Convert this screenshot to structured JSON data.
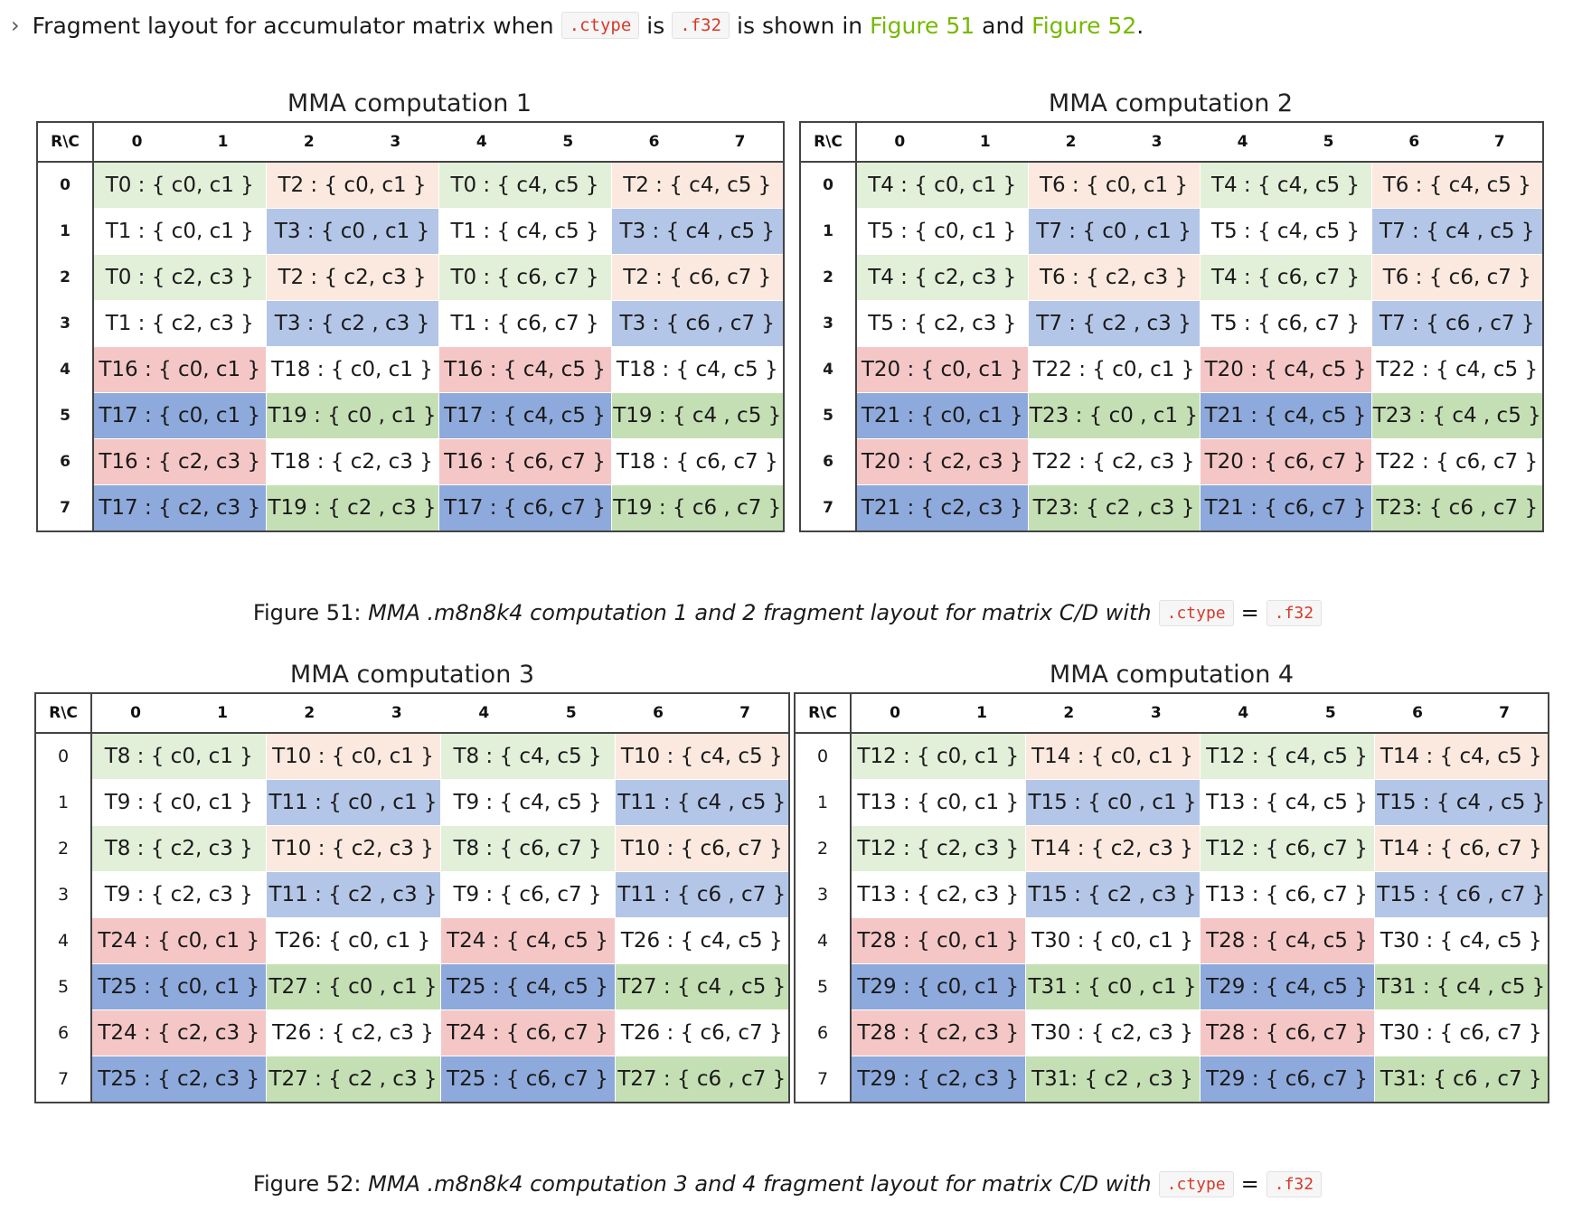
{
  "intro": {
    "text1": "Fragment layout for accumulator matrix when",
    "code1": ".ctype",
    "text2": "is",
    "code2": ".f32",
    "text3": "is shown in",
    "link1": "Figure 51",
    "text4": "and",
    "link2": "Figure 52",
    "text5": "."
  },
  "colors": {
    "G": "#e2efd9",
    "P": "#fbe9df",
    "B": "#b4c6e7",
    "R": "#f4c7c6",
    "D": "#8ea9db",
    "V": "#c5dfb4",
    "W": "#ffffff"
  },
  "color_pattern": [
    [
      "G",
      "P",
      "G",
      "P"
    ],
    [
      "W",
      "B",
      "W",
      "B"
    ],
    [
      "G",
      "P",
      "G",
      "P"
    ],
    [
      "W",
      "B",
      "W",
      "B"
    ],
    [
      "R",
      "W",
      "R",
      "W"
    ],
    [
      "D",
      "V",
      "D",
      "V"
    ],
    [
      "R",
      "W",
      "R",
      "W"
    ],
    [
      "D",
      "V",
      "D",
      "V"
    ]
  ],
  "column_headers": [
    "0",
    "1",
    "2",
    "3",
    "4",
    "5",
    "6",
    "7"
  ],
  "row_headers": [
    "0",
    "1",
    "2",
    "3",
    "4",
    "5",
    "6",
    "7"
  ],
  "corner_label": "R\\C",
  "figures": [
    {
      "panels": [
        {
          "title": "MMA computation 1",
          "rows": [
            [
              "T0 : { c0, c1 }",
              "T2 : { c0, c1 }",
              "T0 : { c4, c5 }",
              "T2 : { c4, c5 }"
            ],
            [
              "T1 : { c0, c1 }",
              "T3 : { c0 , c1 }",
              "T1 : { c4, c5 }",
              "T3 : { c4 , c5 }"
            ],
            [
              "T0 : { c2, c3 }",
              "T2 : { c2, c3 }",
              "T0 : { c6, c7 }",
              "T2 : { c6, c7 }"
            ],
            [
              "T1 : { c2, c3 }",
              "T3 : { c2 , c3 }",
              "T1 : { c6, c7 }",
              "T3 : { c6 , c7 }"
            ],
            [
              "T16 : { c0, c1 }",
              "T18 : { c0, c1 }",
              "T16 : { c4, c5 }",
              "T18 : { c4, c5 }"
            ],
            [
              "T17 : { c0, c1 }",
              "T19 : { c0 , c1 }",
              "T17 : { c4, c5 }",
              "T19 : { c4 , c5 }"
            ],
            [
              "T16 : { c2, c3 }",
              "T18 : { c2, c3 }",
              "T16 : { c6, c7 }",
              "T18 : { c6, c7 }"
            ],
            [
              "T17 : { c2, c3 }",
              "T19 : { c2 , c3 }",
              "T17 : { c6, c7 }",
              "T19 : { c6 , c7 }"
            ]
          ]
        },
        {
          "title": "MMA computation 2",
          "rows": [
            [
              "T4 : { c0, c1 }",
              "T6 : { c0, c1 }",
              "T4 : { c4, c5 }",
              "T6 : { c4, c5 }"
            ],
            [
              "T5 : { c0, c1 }",
              "T7 : { c0 , c1 }",
              "T5 : { c4, c5 }",
              "T7 : { c4 , c5 }"
            ],
            [
              "T4 : { c2, c3 }",
              "T6 : { c2, c3 }",
              "T4 : { c6, c7 }",
              "T6 : { c6, c7 }"
            ],
            [
              "T5 : { c2, c3 }",
              "T7 : { c2 , c3 }",
              "T5 : { c6, c7 }",
              "T7 : { c6 , c7 }"
            ],
            [
              "T20 : { c0, c1 }",
              "T22 : { c0, c1 }",
              "T20 : { c4, c5 }",
              "T22 : { c4, c5 }"
            ],
            [
              "T21 : { c0, c1 }",
              "T23 : { c0 , c1 }",
              "T21 : { c4, c5 }",
              "T23 : { c4 , c5 }"
            ],
            [
              "T20 : { c2, c3 }",
              "T22 : { c2, c3 }",
              "T20 : { c6, c7 }",
              "T22 : { c6, c7 }"
            ],
            [
              "T21 : { c2, c3 }",
              "T23: { c2 , c3 }",
              "T21 : { c6, c7 }",
              "T23: { c6 , c7 }"
            ]
          ]
        }
      ],
      "caption": {
        "prefix": "Figure 51:",
        "italic": "MMA .m8n8k4 computation 1 and 2 fragment layout for matrix C/D with",
        "code1": ".ctype",
        "eq": "=",
        "code2": ".f32"
      }
    },
    {
      "panels": [
        {
          "title": "MMA computation 3",
          "rows": [
            [
              "T8 : { c0, c1 }",
              "T10 : { c0, c1 }",
              "T8 : { c4, c5 }",
              "T10 : { c4, c5 }"
            ],
            [
              "T9 : { c0, c1 }",
              "T11 : { c0 , c1 }",
              "T9 : { c4, c5 }",
              "T11 : { c4 , c5 }"
            ],
            [
              "T8 : { c2, c3 }",
              "T10 : { c2, c3 }",
              "T8 : { c6, c7 }",
              "T10 : { c6, c7 }"
            ],
            [
              "T9 : { c2, c3 }",
              "T11 : { c2 , c3 }",
              "T9 : { c6, c7 }",
              "T11 : { c6 , c7 }"
            ],
            [
              "T24 : { c0, c1 }",
              "T26: { c0, c1 }",
              "T24 : { c4, c5 }",
              "T26 : { c4, c5 }"
            ],
            [
              "T25 : { c0, c1 }",
              "T27 : { c0 , c1 }",
              "T25 : { c4, c5 }",
              "T27 : { c4 , c5 }"
            ],
            [
              "T24 : { c2, c3 }",
              "T26 : { c2, c3 }",
              "T24 : { c6, c7 }",
              "T26 : { c6, c7 }"
            ],
            [
              "T25 : { c2, c3 }",
              "T27 : { c2 , c3 }",
              "T25 : { c6, c7 }",
              "T27 : { c6 , c7 }"
            ]
          ]
        },
        {
          "title": "MMA computation 4",
          "rows": [
            [
              "T12 : { c0, c1 }",
              "T14 : { c0, c1 }",
              "T12 : { c4, c5 }",
              "T14 : { c4, c5 }"
            ],
            [
              "T13 : { c0, c1 }",
              "T15 : { c0 , c1 }",
              "T13 : { c4, c5 }",
              "T15 : { c4 , c5 }"
            ],
            [
              "T12 : { c2, c3 }",
              "T14 : { c2, c3 }",
              "T12 : { c6, c7 }",
              "T14 : { c6, c7 }"
            ],
            [
              "T13 : { c2, c3 }",
              "T15 : { c2 , c3 }",
              "T13 : { c6, c7 }",
              "T15 : { c6 , c7 }"
            ],
            [
              "T28 : { c0, c1 }",
              "T30 : { c0, c1 }",
              "T28 : { c4, c5 }",
              "T30 : { c4, c5 }"
            ],
            [
              "T29 : { c0, c1 }",
              "T31 : { c0 , c1 }",
              "T29 : { c4, c5 }",
              "T31 : { c4 , c5 }"
            ],
            [
              "T28 : { c2, c3 }",
              "T30 : { c2, c3 }",
              "T28 : { c6, c7 }",
              "T30 : { c6, c7 }"
            ],
            [
              "T29 : { c2, c3 }",
              "T31: { c2 , c3 }",
              "T29 : { c6, c7 }",
              "T31: { c6 , c7 }"
            ]
          ]
        }
      ],
      "caption": {
        "prefix": "Figure 52:",
        "italic": "MMA .m8n8k4 computation 3 and 4 fragment layout for matrix C/D with",
        "code1": ".ctype",
        "eq": "=",
        "code2": ".f32"
      }
    }
  ]
}
